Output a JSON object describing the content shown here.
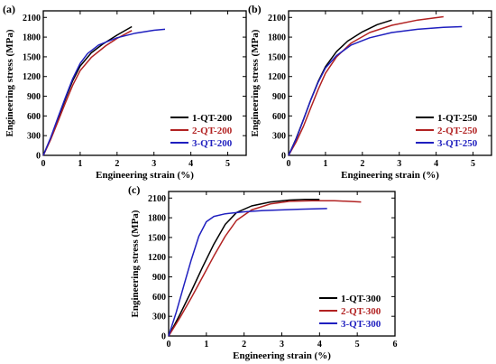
{
  "chart_data": [
    {
      "type": "line",
      "panel_label": "(a)",
      "xlabel": "Engineering strain (%)",
      "ylabel": "Engineering stress (MPa)",
      "xlim": [
        0,
        5.5
      ],
      "ylim": [
        0,
        2200
      ],
      "xticks": [
        0,
        1,
        2,
        3,
        4,
        5
      ],
      "yticks": [
        0,
        300,
        600,
        900,
        1200,
        1500,
        1800,
        2100
      ],
      "legend_position": "bottom-right",
      "series": [
        {
          "name": "1-QT-200",
          "color": "#000000",
          "x": [
            0,
            0.2,
            0.4,
            0.6,
            0.8,
            1.0,
            1.3,
            1.6,
            2.0,
            2.4
          ],
          "y": [
            0,
            260,
            560,
            860,
            1140,
            1360,
            1560,
            1690,
            1830,
            1960
          ]
        },
        {
          "name": "2-QT-200",
          "color": "#b22222",
          "x": [
            0,
            0.2,
            0.4,
            0.6,
            0.8,
            1.0,
            1.3,
            1.7,
            2.0,
            2.4
          ],
          "y": [
            0,
            240,
            520,
            800,
            1070,
            1290,
            1490,
            1670,
            1780,
            1900
          ]
        },
        {
          "name": "3-QT-200",
          "color": "#1f1fbf",
          "x": [
            0,
            0.2,
            0.4,
            0.6,
            0.8,
            1.0,
            1.2,
            1.5,
            2.0,
            2.5,
            3.0,
            3.3
          ],
          "y": [
            0,
            270,
            580,
            880,
            1170,
            1400,
            1550,
            1680,
            1790,
            1860,
            1905,
            1920
          ]
        }
      ]
    },
    {
      "type": "line",
      "panel_label": "(b)",
      "xlabel": "Engineering strain (%)",
      "ylabel": "Engineering stress (MPa)",
      "xlim": [
        0,
        5.5
      ],
      "ylim": [
        0,
        2200
      ],
      "xticks": [
        0,
        1,
        2,
        3,
        4,
        5
      ],
      "yticks": [
        0,
        300,
        600,
        900,
        1200,
        1500,
        1800,
        2100
      ],
      "legend_position": "bottom-right",
      "series": [
        {
          "name": "1-QT-250",
          "color": "#000000",
          "x": [
            0,
            0.2,
            0.4,
            0.6,
            0.8,
            1.0,
            1.3,
            1.6,
            2.0,
            2.4,
            2.8
          ],
          "y": [
            0,
            250,
            540,
            840,
            1120,
            1350,
            1580,
            1740,
            1880,
            1990,
            2060
          ]
        },
        {
          "name": "2-QT-250",
          "color": "#b22222",
          "x": [
            0,
            0.2,
            0.4,
            0.6,
            0.8,
            1.0,
            1.3,
            1.7,
            2.2,
            2.8,
            3.5,
            4.2
          ],
          "y": [
            0,
            200,
            440,
            720,
            1000,
            1250,
            1500,
            1710,
            1870,
            1980,
            2060,
            2110
          ]
        },
        {
          "name": "3-QT-250",
          "color": "#1f1fbf",
          "x": [
            0,
            0.2,
            0.4,
            0.6,
            0.8,
            1.0,
            1.3,
            1.7,
            2.2,
            2.8,
            3.5,
            4.2,
            4.7
          ],
          "y": [
            0,
            240,
            540,
            840,
            1110,
            1330,
            1520,
            1680,
            1790,
            1870,
            1920,
            1950,
            1960
          ]
        }
      ]
    },
    {
      "type": "line",
      "panel_label": "(c)",
      "xlabel": "Engineering strain (%)",
      "ylabel": "Engineering stress (MPa)",
      "xlim": [
        0,
        6
      ],
      "ylim": [
        0,
        2200
      ],
      "xticks": [
        0,
        1,
        2,
        3,
        4,
        5,
        6
      ],
      "yticks": [
        0,
        300,
        600,
        900,
        1200,
        1500,
        1800,
        2100
      ],
      "legend_position": "bottom-right",
      "series": [
        {
          "name": "1-QT-300",
          "color": "#000000",
          "x": [
            0,
            0.3,
            0.6,
            0.9,
            1.2,
            1.5,
            1.8,
            2.2,
            2.7,
            3.2,
            3.6,
            4.0
          ],
          "y": [
            0,
            330,
            680,
            1050,
            1400,
            1700,
            1880,
            1980,
            2040,
            2070,
            2080,
            2080
          ]
        },
        {
          "name": "2-QT-300",
          "color": "#b22222",
          "x": [
            0,
            0.3,
            0.6,
            0.9,
            1.2,
            1.5,
            1.8,
            2.2,
            2.7,
            3.2,
            3.8,
            4.4,
            5.1
          ],
          "y": [
            0,
            280,
            580,
            900,
            1220,
            1520,
            1760,
            1920,
            2010,
            2050,
            2060,
            2060,
            2040
          ]
        },
        {
          "name": "3-QT-300",
          "color": "#1f1fbf",
          "x": [
            0,
            0.2,
            0.4,
            0.6,
            0.8,
            1.0,
            1.2,
            1.5,
            2.0,
            2.5,
            3.0,
            3.5,
            4.2
          ],
          "y": [
            0,
            360,
            760,
            1160,
            1520,
            1740,
            1820,
            1860,
            1890,
            1910,
            1920,
            1930,
            1940
          ]
        }
      ]
    }
  ]
}
